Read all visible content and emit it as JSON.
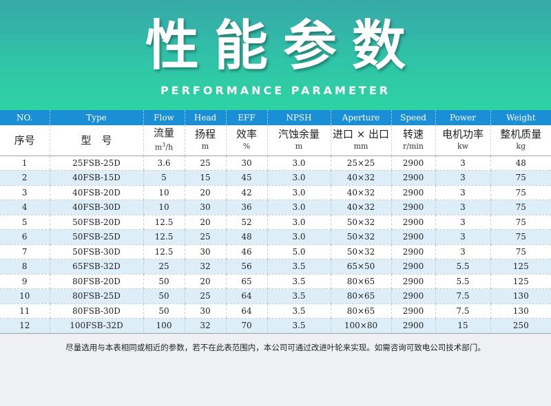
{
  "banner": {
    "title": "性能参数",
    "subtitle": "PERFORMANCE PARAMETER"
  },
  "table": {
    "columns": [
      {
        "en": "NO.",
        "cn": "序号",
        "unit": ""
      },
      {
        "en": "Type",
        "cn": "型　号",
        "unit": ""
      },
      {
        "en": "Flow",
        "cn": "流量",
        "unit": "m3/h"
      },
      {
        "en": "Head",
        "cn": "扬程",
        "unit": "m"
      },
      {
        "en": "EFF",
        "cn": "效率",
        "unit": "%"
      },
      {
        "en": "NPSH",
        "cn": "汽蚀余量",
        "unit": "m"
      },
      {
        "en": "Aperture",
        "cn": "进口 × 出口",
        "unit": "mm"
      },
      {
        "en": "Speed",
        "cn": "转速",
        "unit": "r/min"
      },
      {
        "en": "Power",
        "cn": "电机功率",
        "unit": "kw"
      },
      {
        "en": "Weight",
        "cn": "整机质量",
        "unit": "kg"
      }
    ],
    "rows": [
      [
        "1",
        "25FSB-25D",
        "3.6",
        "25",
        "30",
        "3.0",
        "25×25",
        "2900",
        "3",
        "48"
      ],
      [
        "2",
        "40FSB-15D",
        "5",
        "15",
        "45",
        "3.0",
        "40×32",
        "2900",
        "3",
        "75"
      ],
      [
        "3",
        "40FSB-20D",
        "10",
        "20",
        "42",
        "3.0",
        "40×32",
        "2900",
        "3",
        "75"
      ],
      [
        "4",
        "40FSB-30D",
        "10",
        "30",
        "36",
        "3.0",
        "40×32",
        "2900",
        "3",
        "75"
      ],
      [
        "5",
        "50FSB-20D",
        "12.5",
        "20",
        "52",
        "3.0",
        "50×32",
        "2900",
        "3",
        "75"
      ],
      [
        "6",
        "50FSB-25D",
        "12.5",
        "25",
        "48",
        "3.0",
        "50×32",
        "2900",
        "3",
        "75"
      ],
      [
        "7",
        "50FSB-30D",
        "12.5",
        "30",
        "46",
        "5.0",
        "50×32",
        "2900",
        "3",
        "75"
      ],
      [
        "8",
        "65FSB-32D",
        "25",
        "32",
        "56",
        "3.5",
        "65×50",
        "2900",
        "5.5",
        "125"
      ],
      [
        "9",
        "80FSB-20D",
        "50",
        "20",
        "65",
        "3.5",
        "80×65",
        "2900",
        "5.5",
        "125"
      ],
      [
        "10",
        "80FSB-25D",
        "50",
        "25",
        "64",
        "3.5",
        "80×65",
        "2900",
        "7.5",
        "130"
      ],
      [
        "11",
        "80FSB-30D",
        "50",
        "30",
        "64",
        "3.5",
        "80×65",
        "2900",
        "7.5",
        "130"
      ],
      [
        "12",
        "100FSB-32D",
        "100",
        "32",
        "70",
        "3.5",
        "100×80",
        "2900",
        "15",
        "250"
      ]
    ]
  },
  "note": "尽量选用与本表相同或相近的参数，若不在此表范围内，本公司可通过改进叶轮来实现。如需咨询可致电公司技术部门。"
}
